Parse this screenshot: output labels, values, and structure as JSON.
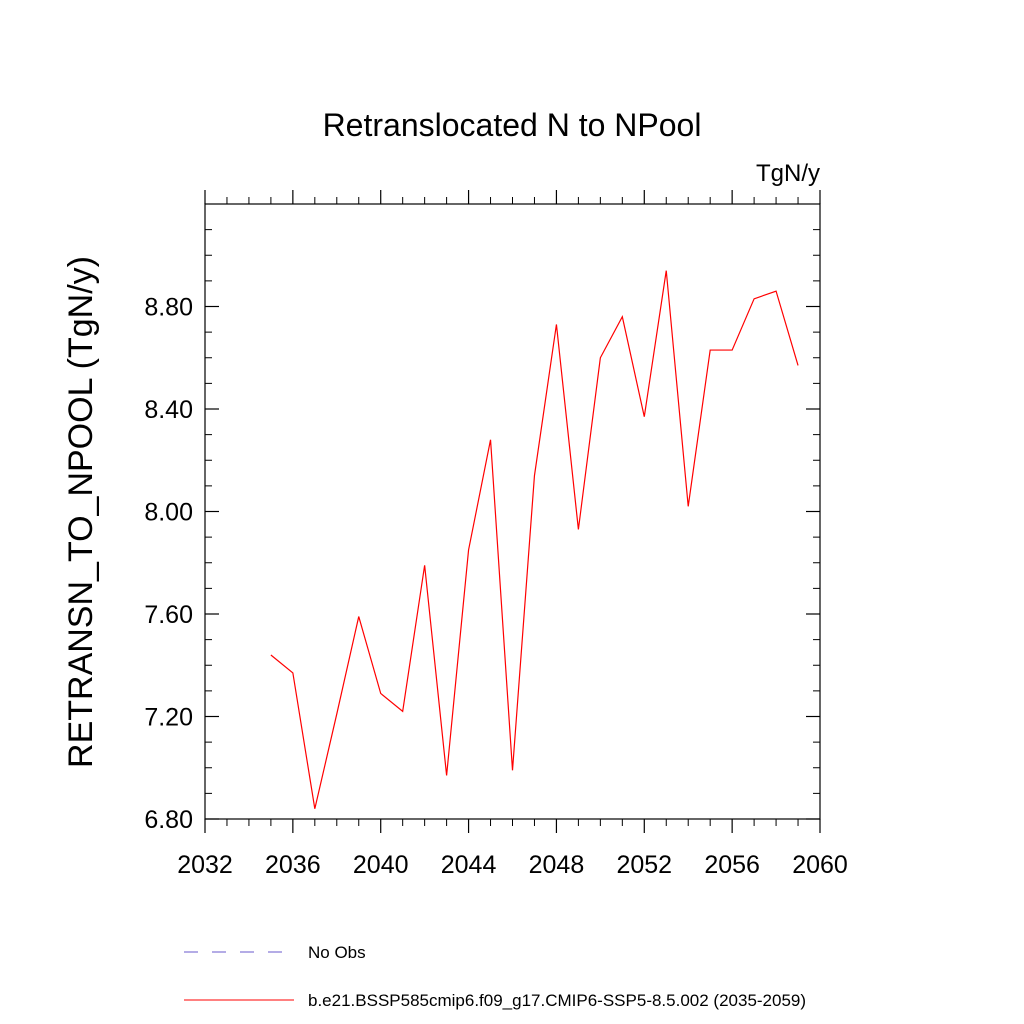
{
  "chart_data": {
    "type": "line",
    "title": "Retranslocated N to NPool",
    "units_label": "TgN/y",
    "ylabel": "RETRANSN_TO_NPOOL  (TgN/y)",
    "xlabel": "",
    "xlim": [
      2032,
      2060
    ],
    "ylim": [
      6.8,
      9.2
    ],
    "x_ticks": [
      2032,
      2036,
      2040,
      2044,
      2048,
      2052,
      2056,
      2060
    ],
    "x_tick_labels": [
      "2032",
      "2036",
      "2040",
      "2044",
      "2048",
      "2052",
      "2056",
      "2060"
    ],
    "y_ticks": [
      6.8,
      7.2,
      7.6,
      8.0,
      8.4,
      8.8
    ],
    "y_tick_labels": [
      "6.80",
      "7.20",
      "7.60",
      "8.00",
      "8.40",
      "8.80"
    ],
    "grid": false,
    "legend_position": "bottom",
    "series": [
      {
        "name": "b.e21.BSSP585cmip6.f09_g17.CMIP6-SSP5-8.5.002 (2035-2059)",
        "color": "#ff0000",
        "style": "solid",
        "x": [
          2035,
          2036,
          2037,
          2038,
          2039,
          2040,
          2041,
          2042,
          2043,
          2044,
          2045,
          2046,
          2047,
          2048,
          2049,
          2050,
          2051,
          2052,
          2053,
          2054,
          2055,
          2056,
          2057,
          2058,
          2059
        ],
        "y": [
          7.44,
          7.37,
          6.84,
          7.21,
          7.59,
          7.29,
          7.22,
          7.79,
          6.97,
          7.85,
          8.28,
          6.99,
          8.14,
          8.73,
          7.93,
          8.6,
          8.76,
          8.37,
          8.94,
          8.02,
          8.63,
          8.63,
          8.83,
          8.86,
          8.57
        ]
      }
    ],
    "legend": [
      {
        "label": "No Obs",
        "color": "#6a5acd",
        "style": "dashed"
      },
      {
        "label": "b.e21.BSSP585cmip6.f09_g17.CMIP6-SSP5-8.5.002 (2035-2059)",
        "color": "#ff0000",
        "style": "solid"
      }
    ]
  }
}
